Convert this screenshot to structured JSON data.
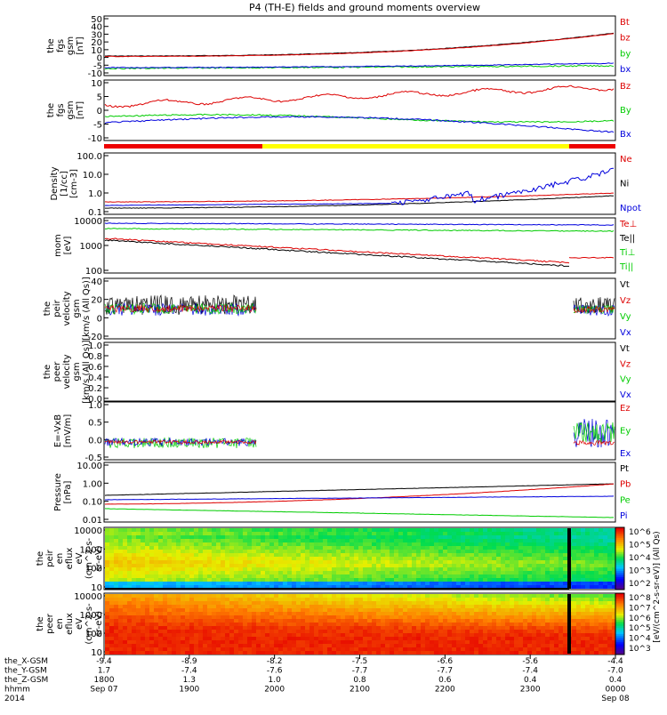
{
  "title": "P4 (TH-E) fields and ground moments overview",
  "colors": {
    "black": "#000000",
    "red": "#dd0000",
    "green": "#00cc00",
    "blue": "#0000dd",
    "yellow": "#ffff00"
  },
  "chart_data": [
    {
      "type": "line",
      "ylabel": [
        "the",
        "fgs",
        "gsm",
        "[nT]"
      ],
      "yticks": [
        "50",
        "40",
        "30",
        "20",
        "10",
        "0",
        "-5",
        "-10"
      ],
      "series": [
        {
          "name": "Bt",
          "color": "red"
        },
        {
          "name": "bz",
          "color": "red"
        },
        {
          "name": "by",
          "color": "green"
        },
        {
          "name": "bx",
          "color": "blue"
        }
      ]
    },
    {
      "type": "line",
      "ylabel": [
        "the",
        "fgs",
        "gsm",
        "[nT]"
      ],
      "yticks": [
        "10",
        "5",
        "0",
        "-5",
        "-10"
      ],
      "series": [
        {
          "name": "Bz",
          "color": "red"
        },
        {
          "name": "By",
          "color": "green"
        },
        {
          "name": "Bx",
          "color": "blue"
        }
      ]
    },
    {
      "type": "line",
      "ylabel": [
        "Density",
        "[1/cc]",
        "[cm-3]"
      ],
      "yticks": [
        "100.0",
        "10.0",
        "1.0",
        "0.1"
      ],
      "series": [
        {
          "name": "Ne",
          "color": "red"
        },
        {
          "name": "Ni",
          "color": "black"
        },
        {
          "name": "Npot",
          "color": "blue"
        }
      ]
    },
    {
      "type": "line",
      "ylabel": [
        "mom",
        "[eV]"
      ],
      "yticks": [
        "10000",
        "1000",
        "100"
      ],
      "series": [
        {
          "name": "Te⊥",
          "color": "red"
        },
        {
          "name": "Te||",
          "color": "black"
        },
        {
          "name": "Ti⊥",
          "color": "green"
        },
        {
          "name": "Ti||",
          "color": "green"
        }
      ]
    },
    {
      "type": "line",
      "ylabel": [
        "the",
        "peir",
        "velocity",
        "gsm",
        "[km/s (All Qs)]"
      ],
      "yticks": [
        "40",
        "20",
        "0",
        "-20"
      ],
      "series": [
        {
          "name": "Vt",
          "color": "black"
        },
        {
          "name": "Vz",
          "color": "red"
        },
        {
          "name": "Vy",
          "color": "green"
        },
        {
          "name": "Vx",
          "color": "blue"
        }
      ]
    },
    {
      "type": "line",
      "ylabel": [
        "the",
        "peer",
        "velocity",
        "gsm",
        "[km/s (All Qs)]"
      ],
      "yticks": [
        "1.0",
        "0.8",
        "0.6",
        "0.4",
        "0.2",
        "0.0"
      ],
      "series": [
        {
          "name": "Vt",
          "color": "black"
        },
        {
          "name": "Vz",
          "color": "red"
        },
        {
          "name": "Vy",
          "color": "green"
        },
        {
          "name": "Vx",
          "color": "blue"
        }
      ]
    },
    {
      "type": "line",
      "ylabel": [
        "E=-VxB",
        "[mV/m]"
      ],
      "yticks": [
        "1.0",
        "0.5",
        "0.0",
        "-0.5"
      ],
      "series": [
        {
          "name": "Ez",
          "color": "red"
        },
        {
          "name": "Ey",
          "color": "green"
        },
        {
          "name": "Ex",
          "color": "blue"
        }
      ]
    },
    {
      "type": "line",
      "ylabel": [
        "Pressure",
        "[nPa]"
      ],
      "yticks": [
        "10.00",
        "1.00",
        "0.10",
        "0.01"
      ],
      "series": [
        {
          "name": "Pt",
          "color": "black"
        },
        {
          "name": "Pb",
          "color": "red"
        },
        {
          "name": "Pe",
          "color": "green"
        },
        {
          "name": "Pi",
          "color": "blue"
        }
      ]
    },
    {
      "type": "heatmap",
      "ylabel": [
        "the",
        "peir",
        "en",
        "eflux",
        "eV",
        "(cm^2-s-",
        "sr-eV)"
      ],
      "yticks": [
        "10000",
        "1000",
        "100",
        "10"
      ],
      "colorbar": [
        "10^6",
        "10^5",
        "10^4",
        "10^3",
        "10^2"
      ]
    },
    {
      "type": "heatmap",
      "ylabel": [
        "the",
        "peer",
        "en",
        "eflux",
        "eV",
        "(cm^2-s-",
        "sr-eV)"
      ],
      "yticks": [
        "10000",
        "1000",
        "100",
        "10"
      ],
      "colorbar": [
        "10^8",
        "10^7",
        "10^6",
        "10^5",
        "10^4",
        "10^3"
      ]
    }
  ],
  "colorbar_label": "[eV/(cm^2-s-sr-eV)] (All Qs)",
  "xaxis": {
    "row_labels": [
      "the_X-GSM",
      "the_Y-GSM",
      "the_Z-GSM",
      "hhmm",
      "2014"
    ],
    "columns": [
      [
        "-9.4",
        "1.7",
        "1800",
        "Sep 07"
      ],
      [
        "-8.9",
        "-7.4",
        "1.3",
        "1900"
      ],
      [
        "-8.2",
        "-7.6",
        "1.0",
        "2000"
      ],
      [
        "-7.5",
        "-7.7",
        "0.8",
        "2100"
      ],
      [
        "-6.6",
        "-7.7",
        "0.6",
        "2200"
      ],
      [
        "-5.6",
        "-7.4",
        "0.4",
        "2300"
      ],
      [
        "-4.4",
        "-7.0",
        "0.4",
        "0000",
        "Sep 08"
      ]
    ]
  }
}
